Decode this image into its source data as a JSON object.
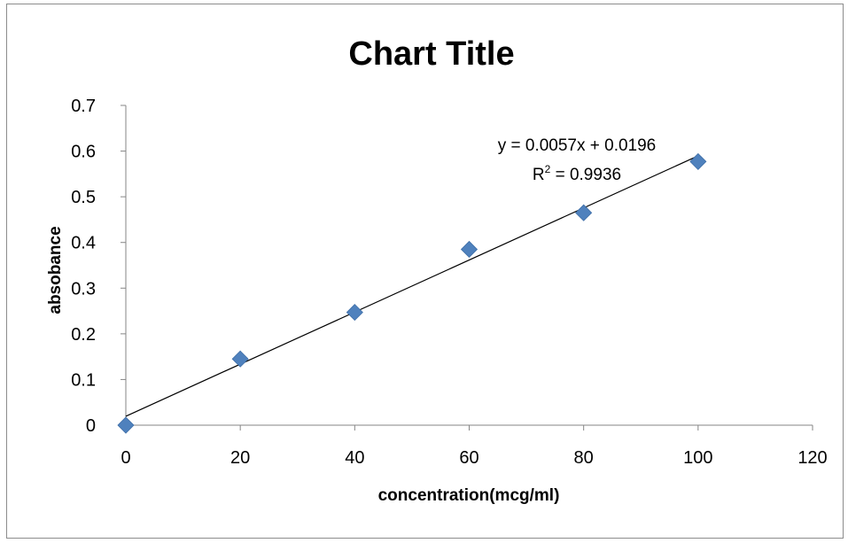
{
  "chart_data": {
    "type": "scatter",
    "title": "Chart Title",
    "xlabel": "concentration(mcg/ml)",
    "ylabel": "absobance",
    "xlim": [
      0,
      120
    ],
    "ylim": [
      0,
      0.7
    ],
    "xticks": [
      0,
      20,
      40,
      60,
      80,
      100,
      120
    ],
    "yticks": [
      0,
      0.1,
      0.2,
      0.3,
      0.4,
      0.5,
      0.6,
      0.7
    ],
    "xtick_labels": [
      "0",
      "20",
      "40",
      "60",
      "80",
      "100",
      "120"
    ],
    "ytick_labels": [
      "0",
      "0.1",
      "0.2",
      "0.3",
      "0.4",
      "0.5",
      "0.6",
      "0.7"
    ],
    "grid": false,
    "legend": "none",
    "marker": "diamond",
    "marker_color": "#4F81BD",
    "series": [
      {
        "x": [
          0,
          20,
          40,
          60,
          80,
          100
        ],
        "y": [
          0,
          0.145,
          0.247,
          0.385,
          0.465,
          0.577
        ]
      }
    ],
    "trendline": {
      "type": "linear",
      "slope": 0.0057,
      "intercept": 0.0196,
      "color": "#000000",
      "equation_label": "y = 0.0057x + 0.0196",
      "r2_prefix": "R",
      "r2_sup": "2",
      "r2_rest": " = 0.9936"
    }
  }
}
